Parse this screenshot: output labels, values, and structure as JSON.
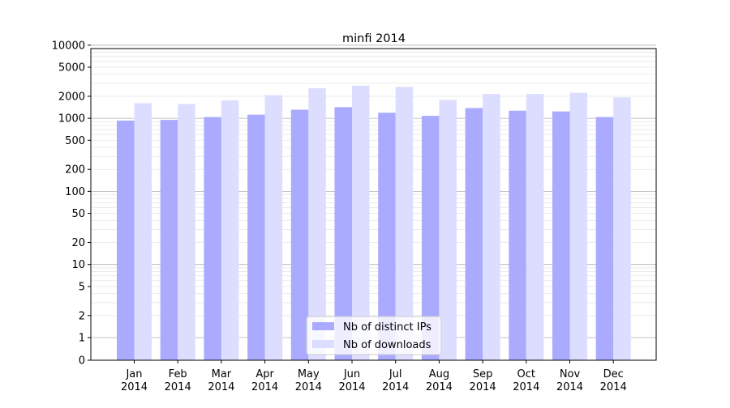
{
  "chart_data": {
    "type": "bar",
    "title": "minfi 2014",
    "xlabel": "",
    "ylabel": "",
    "yscale": "symlog",
    "ylim": [
      0,
      15000
    ],
    "grid": true,
    "legend_position": "lower center",
    "categories": [
      [
        "Jan",
        "2014"
      ],
      [
        "Feb",
        "2014"
      ],
      [
        "Mar",
        "2014"
      ],
      [
        "Apr",
        "2014"
      ],
      [
        "May",
        "2014"
      ],
      [
        "Jun",
        "2014"
      ],
      [
        "Jul",
        "2014"
      ],
      [
        "Aug",
        "2014"
      ],
      [
        "Sep",
        "2014"
      ],
      [
        "Oct",
        "2014"
      ],
      [
        "Nov",
        "2014"
      ],
      [
        "Dec",
        "2014"
      ]
    ],
    "yticks": [
      0,
      1,
      2,
      5,
      10,
      20,
      50,
      100,
      200,
      500,
      1000,
      2000,
      5000,
      10000
    ],
    "series": [
      {
        "name": "Nb of distinct IPs",
        "color": "#aaaaff",
        "values": [
          930,
          950,
          1040,
          1120,
          1310,
          1420,
          1190,
          1080,
          1380,
          1270,
          1240,
          1040
        ]
      },
      {
        "name": "Nb of downloads",
        "color": "#ddddff",
        "values": [
          1610,
          1570,
          1760,
          2070,
          2580,
          2790,
          2690,
          1790,
          2150,
          2150,
          2230,
          1930
        ]
      }
    ]
  }
}
